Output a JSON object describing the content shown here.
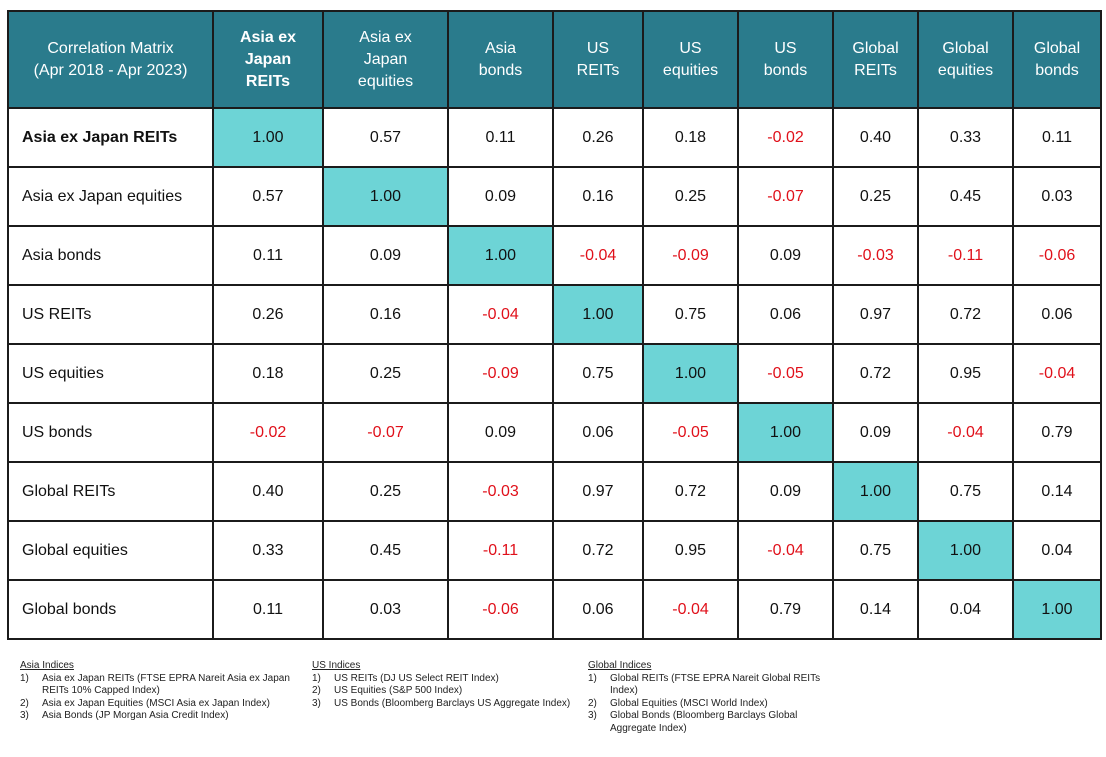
{
  "corner_title": [
    "Correlation Matrix",
    "(Apr 2018 - Apr 2023)"
  ],
  "columns": [
    {
      "lines": [
        "Asia ex",
        "Japan",
        "REITs"
      ],
      "bold": true
    },
    {
      "lines": [
        "Asia ex",
        "Japan",
        "equities"
      ],
      "bold": false
    },
    {
      "lines": [
        "Asia",
        "bonds"
      ],
      "bold": false
    },
    {
      "lines": [
        "US",
        "REITs"
      ],
      "bold": false
    },
    {
      "lines": [
        "US",
        "equities"
      ],
      "bold": false
    },
    {
      "lines": [
        "US",
        "bonds"
      ],
      "bold": false
    },
    {
      "lines": [
        "Global",
        "REITs"
      ],
      "bold": false
    },
    {
      "lines": [
        "Global",
        "equities"
      ],
      "bold": false
    },
    {
      "lines": [
        "Global",
        "bonds"
      ],
      "bold": false
    }
  ],
  "chart_data": {
    "type": "heatmap",
    "title": "Correlation Matrix (Apr 2018 - Apr 2023)",
    "rows": [
      "Asia ex Japan REITs",
      "Asia ex Japan equities",
      "Asia bonds",
      "US REITs",
      "US equities",
      "US bonds",
      "Global REITs",
      "Global equities",
      "Global bonds"
    ],
    "values": [
      [
        "1.00",
        "0.57",
        "0.11",
        "0.26",
        "0.18",
        "-0.02",
        "0.40",
        "0.33",
        "0.11"
      ],
      [
        "0.57",
        "1.00",
        "0.09",
        "0.16",
        "0.25",
        "-0.07",
        "0.25",
        "0.45",
        "0.03"
      ],
      [
        "0.11",
        "0.09",
        "1.00",
        "-0.04",
        "-0.09",
        "0.09",
        "-0.03",
        "-0.11",
        "-0.06"
      ],
      [
        "0.26",
        "0.16",
        "-0.04",
        "1.00",
        "0.75",
        "0.06",
        "0.97",
        "0.72",
        "0.06"
      ],
      [
        "0.18",
        "0.25",
        "-0.09",
        "0.75",
        "1.00",
        "-0.05",
        "0.72",
        "0.95",
        "-0.04"
      ],
      [
        "-0.02",
        "-0.07",
        "0.09",
        "0.06",
        "-0.05",
        "1.00",
        "0.09",
        "-0.04",
        "0.79"
      ],
      [
        "0.40",
        "0.25",
        "-0.03",
        "0.97",
        "0.72",
        "0.09",
        "1.00",
        "0.75",
        "0.14"
      ],
      [
        "0.33",
        "0.45",
        "-0.11",
        "0.72",
        "0.95",
        "-0.04",
        "0.75",
        "1.00",
        "0.04"
      ],
      [
        "0.11",
        "0.03",
        "-0.06",
        "0.06",
        "-0.04",
        "0.79",
        "0.14",
        "0.04",
        "1.00"
      ]
    ]
  },
  "colors": {
    "header_bg": "#2a7b8c",
    "diagonal_bg": "#6dd4d6",
    "negative_text": "#e0101a"
  },
  "notes": [
    {
      "title": "Asia Indices",
      "items": [
        {
          "num": "1)",
          "text": "Asia ex Japan REITs (FTSE EPRA Nareit Asia ex Japan REITs 10% Capped Index)"
        },
        {
          "num": "2)",
          "text": "Asia ex Japan Equities (MSCI Asia ex Japan Index)"
        },
        {
          "num": "3)",
          "text": "Asia Bonds (JP Morgan Asia Credit Index)"
        }
      ]
    },
    {
      "title": "US Indices",
      "items": [
        {
          "num": "1)",
          "text": "US REITs (DJ US Select REIT Index)"
        },
        {
          "num": "2)",
          "text": "US Equities (S&P 500 Index)"
        },
        {
          "num": "3)",
          "text": "US Bonds (Bloomberg Barclays US Aggregate Index)"
        }
      ]
    },
    {
      "title": "Global Indices",
      "items": [
        {
          "num": "1)",
          "text": "Global REITs (FTSE EPRA Nareit Global REITs Index)"
        },
        {
          "num": "2)",
          "text": "Global Equities (MSCI World Index)"
        },
        {
          "num": "3)",
          "text": "Global Bonds (Bloomberg Barclays Global Aggregate Index)"
        }
      ]
    }
  ]
}
